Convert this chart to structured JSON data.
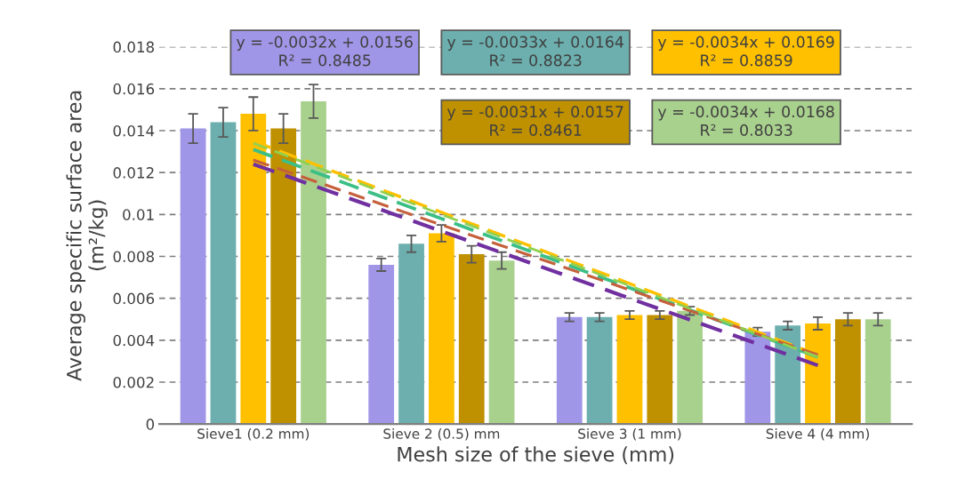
{
  "chart_data": {
    "type": "bar",
    "categories": [
      "Sieve1 (0.2 mm)",
      "Sieve 2 (0.5) mm",
      "Sieve 3 (1 mm)",
      "Sieve 4 (4 mm)"
    ],
    "xlabel": "Mesh size of the sieve (mm)",
    "ylabel": "Average specific surface area\n(m²/kg)",
    "ylim": [
      0,
      0.018
    ],
    "yticks": [
      0,
      0.002,
      0.004,
      0.006,
      0.008,
      0.01,
      0.012,
      0.014,
      0.016,
      0.018
    ],
    "grid": "y",
    "legend": false,
    "series": [
      {
        "color": "#a096e8",
        "values": [
          0.0141,
          0.0076,
          0.0051,
          0.0044
        ],
        "errors": [
          0.0007,
          0.0003,
          0.0002,
          0.0002
        ]
      },
      {
        "color": "#6cafae",
        "values": [
          0.0144,
          0.0086,
          0.0051,
          0.0047
        ],
        "errors": [
          0.0007,
          0.0004,
          0.0002,
          0.0002
        ]
      },
      {
        "color": "#ffc000",
        "values": [
          0.0148,
          0.0091,
          0.0052,
          0.0048
        ],
        "errors": [
          0.0008,
          0.0004,
          0.0002,
          0.0003
        ]
      },
      {
        "color": "#bf9000",
        "values": [
          0.0141,
          0.0081,
          0.0052,
          0.005
        ],
        "errors": [
          0.0007,
          0.0004,
          0.0002,
          0.0003
        ]
      },
      {
        "color": "#a9d18e",
        "values": [
          0.0154,
          0.0078,
          0.0054,
          0.005
        ],
        "errors": [
          0.0008,
          0.0004,
          0.0002,
          0.0003
        ]
      },
      {
        "type": "line",
        "color": "#7030a0",
        "line_style": "dashed",
        "values": [
          0.0124,
          0.0092,
          0.006,
          0.0028
        ]
      },
      {
        "type": "line",
        "color": "#3cbf86",
        "line_style": "dashed",
        "values": [
          0.0131,
          0.0098,
          0.0065,
          0.0032
        ]
      },
      {
        "type": "line",
        "color": "#ffc000",
        "line_style": "dashed",
        "values": [
          0.0135,
          0.0101,
          0.0067,
          0.0033
        ]
      },
      {
        "type": "line",
        "color": "#c5603c",
        "line_style": "dashed",
        "values": [
          0.0126,
          0.0095,
          0.0064,
          0.0033
        ]
      },
      {
        "type": "line",
        "color": "#92d050",
        "line_style": "dashed",
        "values": [
          0.0134,
          0.01,
          0.0066,
          0.0032
        ]
      }
    ],
    "annotations": [
      "y = -0.0032x + 0.0156\nR² = 0.8485",
      "y = -0.0033x + 0.0164\nR² = 0.8823",
      "y = -0.0034x + 0.0169\nR² = 0.8859",
      "y = -0.0031x + 0.0157\nR² = 0.8461",
      "y = -0.0034x + 0.0168\nR² = 0.8033"
    ]
  }
}
